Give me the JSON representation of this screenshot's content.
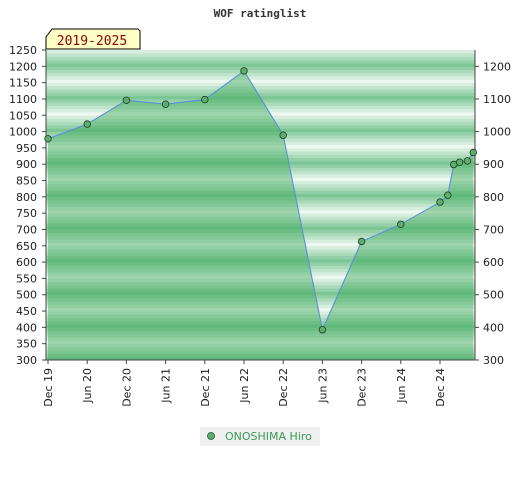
{
  "chart_data": {
    "type": "area",
    "title": "WOF ratinglist",
    "period_label": "2019-2025",
    "x_ticks": [
      "Dec 19",
      "Jun 20",
      "Dec 20",
      "Jun 21",
      "Dec 21",
      "Jun 22",
      "Dec 22",
      "Jun 23",
      "Dec 23",
      "Jun 24",
      "Dec 24"
    ],
    "ylim": [
      300,
      1250
    ],
    "y_ticks_left": [
      300,
      350,
      400,
      450,
      500,
      550,
      600,
      650,
      700,
      750,
      800,
      850,
      900,
      950,
      1000,
      1050,
      1100,
      1150,
      1200,
      1250
    ],
    "y_ticks_right": [
      300,
      400,
      500,
      600,
      700,
      800,
      900,
      1000,
      1100,
      1200
    ],
    "series": [
      {
        "name": "ONOSHIMA Hiro",
        "x": [
          0,
          1,
          2,
          3,
          4,
          5,
          6,
          7,
          8,
          9,
          10,
          10.2,
          10.35,
          10.5,
          10.7,
          10.85
        ],
        "values": [
          978,
          1023,
          1096,
          1084,
          1098,
          1186,
          989,
          393,
          663,
          716,
          784,
          805,
          899,
          906,
          910,
          936
        ]
      }
    ],
    "colors": {
      "band_dark": "#7cc695",
      "band_light": "#eef8f1",
      "line": "#5b8fd6",
      "marker": "#5fae6d",
      "period_bg": "#ffffc6"
    },
    "grid": true,
    "legend_position": "bottom-center"
  }
}
